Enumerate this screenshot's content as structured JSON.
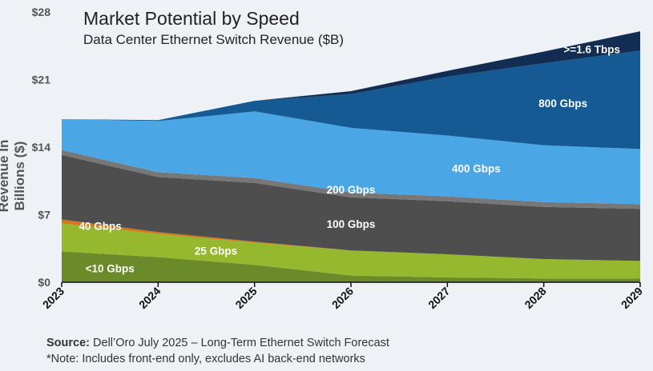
{
  "chart_data": {
    "type": "area",
    "title": "Market Potential by Speed",
    "subtitle": "Data Center Ethernet Switch Revenue ($B)",
    "ylabel": "Revenue In Billions ($)",
    "xlabel": "",
    "ylim": [
      0,
      28
    ],
    "ytick_labels": [
      "$0",
      "$7",
      "$14",
      "$21",
      "$28"
    ],
    "yticks": [
      0,
      7,
      14,
      21,
      28
    ],
    "x": [
      "2023",
      "2024",
      "2025",
      "2026",
      "2027",
      "2028",
      "2029"
    ],
    "stacked": true,
    "series": [
      {
        "name": "<10 Gbps",
        "color": "#6b8a2a",
        "values": [
          3.2,
          2.6,
          1.8,
          0.7,
          0.5,
          0.4,
          0.4
        ]
      },
      {
        "name": "25 Gbps",
        "color": "#96b82e",
        "values": [
          2.9,
          2.4,
          2.3,
          2.6,
          2.4,
          2.0,
          1.8
        ]
      },
      {
        "name": "40 Gbps",
        "color": "#d4781e",
        "values": [
          0.4,
          0.2,
          0.1,
          0.0,
          0.0,
          0.0,
          0.0
        ]
      },
      {
        "name": "100 Gbps",
        "color": "#4e4e4e",
        "values": [
          6.7,
          5.7,
          6.1,
          5.5,
          5.5,
          5.4,
          5.4
        ]
      },
      {
        "name": "200 Gbps",
        "color": "#777777",
        "values": [
          0.5,
          0.5,
          0.5,
          0.5,
          0.5,
          0.5,
          0.5
        ]
      },
      {
        "name": "400 Gbps",
        "color": "#4aa6e4",
        "values": [
          3.2,
          5.3,
          6.9,
          6.7,
          6.3,
          5.9,
          5.7
        ]
      },
      {
        "name": "800 Gbps",
        "color": "#155a92",
        "values": [
          0.0,
          0.1,
          1.1,
          3.5,
          6.1,
          8.5,
          10.2
        ]
      },
      {
        "name": ">=1.6 Tbps",
        "color": "#132c52",
        "values": [
          0.0,
          0.0,
          0.0,
          0.3,
          0.6,
          1.2,
          2.0
        ]
      }
    ],
    "labels": [
      {
        "series": "<10 Gbps",
        "text": "<10 Gbps",
        "color": "#ffffff"
      },
      {
        "series": "25 Gbps",
        "text": "25 Gbps",
        "color": "#ffffff"
      },
      {
        "series": "40 Gbps",
        "text": "40 Gbps",
        "color": "#ffffff"
      },
      {
        "series": "100 Gbps",
        "text": "100 Gbps",
        "color": "#ffffff"
      },
      {
        "series": "200 Gbps",
        "text": "200 Gbps",
        "color": "#ffffff"
      },
      {
        "series": "400 Gbps",
        "text": "400 Gbps",
        "color": "#ffffff"
      },
      {
        "series": "800 Gbps",
        "text": "800 Gbps",
        "color": "#ffffff"
      },
      {
        "series": ">=1.6 Tbps",
        "text": ">=1.6 Tbps",
        "color": "#ffffff"
      }
    ],
    "grid": false,
    "legend": "none"
  },
  "footer": {
    "source_label": "Source:",
    "source_text": " Dell’Oro July 2025 – Long-Term Ethernet Switch Forecast",
    "note": "*Note: Includes front-end only, excludes AI back-end networks"
  }
}
